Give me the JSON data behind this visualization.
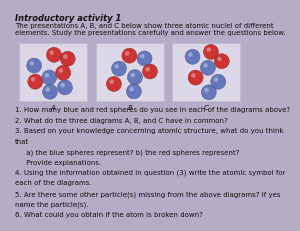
{
  "background_color": "#b5adc5",
  "title": "Introductory activity 1",
  "intro_text1": "The presentations A, B, and C below show three atomic nuclei of different",
  "intro_text2": "elements. Study the presentations carefully and answer the questions below.",
  "atom_labels": [
    "A",
    "B",
    "C"
  ],
  "atom_box_color": "#ddd8e8",
  "atom_box_edge": "#c0bcd0",
  "blue_sphere": "#6677bb",
  "red_sphere": "#cc3333",
  "questions": [
    "1. How many blue and red spheres do you see in each of the diagrams above?",
    "2. What do the three diagrams A, B, and C have in common?",
    "3. Based on your knowledge concerning atomic structure, what do you think",
    "that",
    "     a) the blue spheres represent? b) the red spheres represent?",
    "     Provide explanations.",
    "4. Using the information obtained in question (3) write the atomic symbol for",
    "each of the diagrams.",
    "5. Are there some other particle(s) missing from the above diagrams? If yes",
    "name the particle(s).",
    "6. What could you obtain if the atom is broken down?"
  ],
  "title_fontsize": 6.0,
  "text_fontsize": 5.0,
  "question_fontsize": 5.0,
  "text_color": "#111111"
}
